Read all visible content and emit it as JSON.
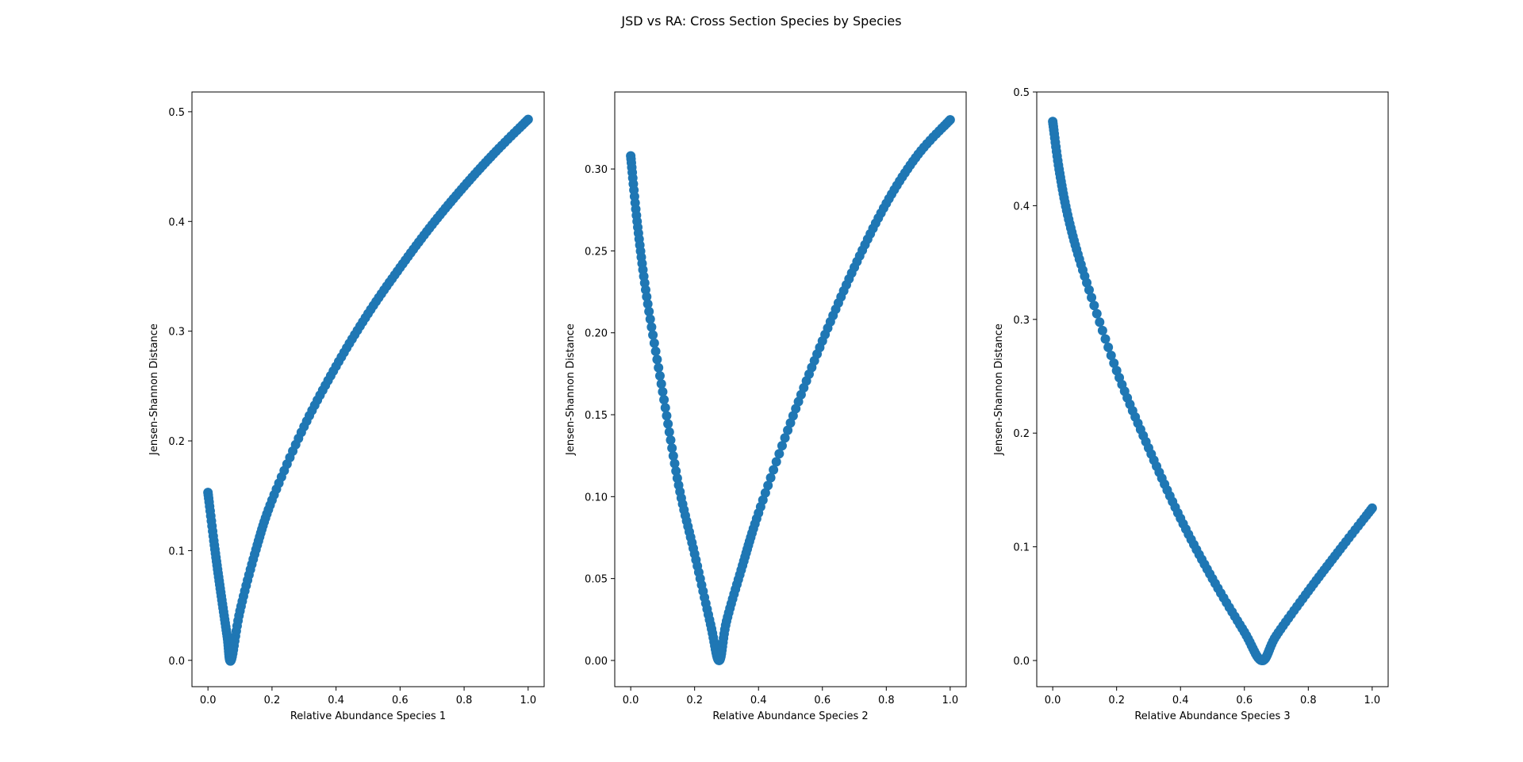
{
  "figure": {
    "title": "JSD vs RA: Cross Section Species by Species"
  },
  "chart_data": [
    {
      "type": "scatter",
      "xlabel": "Relative Abundance Species 1",
      "ylabel": "Jensen-Shannon Distance",
      "xlim": [
        -0.05,
        1.05
      ],
      "ylim": [
        -0.024,
        0.518
      ],
      "xticks": [
        "0.0",
        "0.2",
        "0.4",
        "0.6",
        "0.8",
        "1.0"
      ],
      "yticks": [
        "0.0",
        "0.1",
        "0.2",
        "0.3",
        "0.4",
        "0.5"
      ],
      "grid": false,
      "color": "#1f77b4",
      "series": [
        {
          "x": [
            0.0,
            0.02,
            0.04,
            0.06,
            0.072,
            0.1,
            0.15,
            0.2,
            0.3,
            0.4,
            0.5,
            0.6,
            0.7,
            0.8,
            0.9,
            1.0
          ],
          "y": [
            0.153,
            0.105,
            0.062,
            0.022,
            0.0,
            0.045,
            0.101,
            0.146,
            0.213,
            0.268,
            0.316,
            0.358,
            0.397,
            0.432,
            0.464,
            0.493
          ]
        }
      ]
    },
    {
      "type": "scatter",
      "xlabel": "Relative Abundance Species 2",
      "ylabel": "Jensen-Shannon Distance",
      "xlim": [
        -0.05,
        1.05
      ],
      "ylim": [
        -0.016,
        0.347
      ],
      "xticks": [
        "0.0",
        "0.2",
        "0.4",
        "0.6",
        "0.8",
        "1.0"
      ],
      "yticks": [
        "0.00",
        "0.05",
        "0.10",
        "0.15",
        "0.20",
        "0.25",
        "0.30"
      ],
      "grid": false,
      "color": "#1f77b4",
      "series": [
        {
          "x": [
            0.0,
            0.02,
            0.05,
            0.1,
            0.15,
            0.2,
            0.25,
            0.277,
            0.3,
            0.35,
            0.4,
            0.5,
            0.6,
            0.7,
            0.8,
            0.9,
            1.0
          ],
          "y": [
            0.308,
            0.268,
            0.222,
            0.164,
            0.107,
            0.065,
            0.022,
            0.0,
            0.024,
            0.058,
            0.09,
            0.145,
            0.195,
            0.24,
            0.279,
            0.309,
            0.33
          ]
        }
      ]
    },
    {
      "type": "scatter",
      "xlabel": "Relative Abundance Species 3",
      "ylabel": "Jensen-Shannon Distance",
      "xlim": [
        -0.05,
        1.05
      ],
      "ylim": [
        -0.023,
        0.5
      ],
      "xticks": [
        "0.0",
        "0.2",
        "0.4",
        "0.6",
        "0.8",
        "1.0"
      ],
      "yticks": [
        "0.0",
        "0.1",
        "0.2",
        "0.3",
        "0.4",
        "0.5"
      ],
      "grid": false,
      "color": "#1f77b4",
      "series": [
        {
          "x": [
            0.0,
            0.02,
            0.05,
            0.1,
            0.2,
            0.3,
            0.4,
            0.5,
            0.6,
            0.655,
            0.7,
            0.8,
            0.9,
            1.0
          ],
          "y": [
            0.474,
            0.432,
            0.388,
            0.338,
            0.255,
            0.187,
            0.125,
            0.072,
            0.025,
            0.0,
            0.022,
            0.061,
            0.098,
            0.134
          ]
        }
      ]
    }
  ]
}
